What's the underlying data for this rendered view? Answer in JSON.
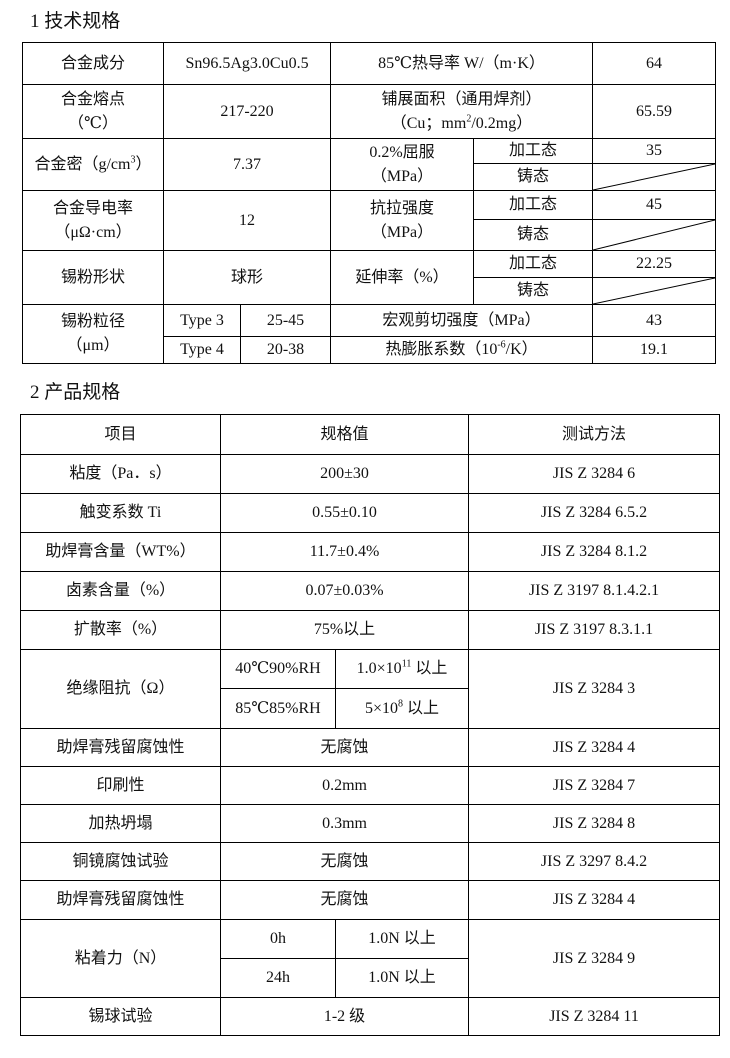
{
  "section1": {
    "title": "1  技术规格",
    "alloy_composition_label": "合金成分",
    "alloy_composition": "Sn96.5Ag3.0Cu0.5",
    "thermal_conductivity_label": "85℃热导率 W/（m·K）",
    "thermal_conductivity": "64",
    "melting_point_label_1": "合金熔点",
    "melting_point_label_2": "（℃）",
    "melting_point": "217-220",
    "spread_area_label_1": "铺展面积（通用焊剂）",
    "spread_area_label_2a": "（Cu；mm",
    "spread_area_label_2sup": "2",
    "spread_area_label_2b": "/0.2mg）",
    "spread_area": "65.59",
    "density_label_a": "合金密（g/cm",
    "density_label_sup": "3",
    "density_label_b": "）",
    "density": "7.37",
    "yield_label_1": "0.2%屈服",
    "yield_label_2": "（MPa）",
    "worked_label": "加工态",
    "cast_label": "铸态",
    "yield_worked": "35",
    "conductivity_label_1": "合金导电率",
    "conductivity_label_2": "（μΩ·cm）",
    "conductivity": "12",
    "tensile_label_1": "抗拉强度",
    "tensile_label_2": "（MPa）",
    "tensile_worked": "45",
    "powder_shape_label": "锡粉形状",
    "powder_shape": "球形",
    "elongation_label": "延伸率（%）",
    "elongation_worked": "22.25",
    "particle_size_label_1": "锡粉粒径",
    "particle_size_label_2": "（μm）",
    "type3": "Type 3",
    "type3_range": "25-45",
    "type4": "Type 4",
    "type4_range": "20-38",
    "shear_label": "宏观剪切强度（MPa）",
    "shear": "43",
    "cte_label_a": "热膨胀系数（10",
    "cte_label_sup": "-6",
    "cte_label_b": "/K）",
    "cte": "19.1"
  },
  "section2": {
    "title": "2  产品规格",
    "headers": [
      "项目",
      "规格值",
      "测试方法"
    ],
    "rows": [
      [
        "粘度（Pa．s）",
        "200±30",
        "JIS Z 3284 6"
      ],
      [
        "触变系数 Ti",
        "0.55±0.10",
        "JIS Z 3284 6.5.2"
      ],
      [
        "助焊膏含量（WT%）",
        "11.7±0.4%",
        "JIS Z 3284 8.1.2"
      ],
      [
        "卤素含量（%）",
        "0.07±0.03%",
        "JIS Z 3197 8.1.4.2.1"
      ],
      [
        "扩散率（%）",
        "75%以上",
        "JIS Z 3197 8.3.1.1"
      ]
    ],
    "insulation": {
      "label": "绝缘阻抗（Ω）",
      "cond1": "40℃90%RH",
      "val1_a": "1.0×10",
      "val1_sup": "11",
      "val1_b": " 以上",
      "cond2": "85℃85%RH",
      "val2_a": "5×10",
      "val2_sup": "8",
      "val2_b": " 以上",
      "method": "JIS Z 3284 3"
    },
    "rows2": [
      [
        "助焊膏残留腐蚀性",
        "无腐蚀",
        "JIS Z 3284 4"
      ],
      [
        "印刷性",
        "0.2mm",
        "JIS Z 3284 7"
      ],
      [
        "加热坍塌",
        "0.3mm",
        "JIS Z 3284 8"
      ],
      [
        "铜镜腐蚀试验",
        "无腐蚀",
        "JIS Z 3297 8.4.2"
      ],
      [
        "助焊膏残留腐蚀性",
        "无腐蚀",
        "JIS Z 3284 4"
      ]
    ],
    "adhesion": {
      "label": "粘着力（N）",
      "t1": "0h",
      "v1": "1.0N 以上",
      "t2": "24h",
      "v2": "1.0N 以上",
      "method": "JIS Z 3284 9"
    },
    "last_row": [
      "锡球试验",
      "1-2 级",
      "JIS Z 3284 11"
    ]
  }
}
